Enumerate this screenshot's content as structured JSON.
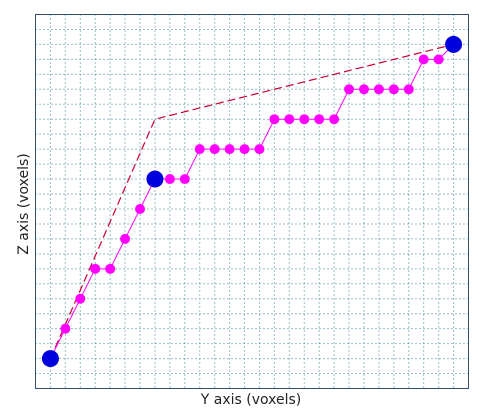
{
  "chart_data": {
    "type": "scatter",
    "title": "",
    "xlabel": "Y axis (voxels)",
    "ylabel": "Z axis (voxels)",
    "xlim": [
      0,
      29
    ],
    "ylim": [
      0,
      25
    ],
    "grid": true,
    "legend": "none",
    "colors": {
      "frame": "#2f4f6f",
      "grid": "#2e7f8f",
      "path": "#cc0033",
      "points": "#ff00ff",
      "nodes": "#0000dd"
    },
    "series": [
      {
        "role": "path-line",
        "style": "dashed",
        "x": [
          1,
          8,
          28
        ],
        "y": [
          2,
          18,
          23
        ]
      },
      {
        "role": "voxel-points",
        "x": [
          1,
          2,
          3,
          4,
          5,
          6,
          7,
          8,
          9,
          10,
          11,
          12,
          13,
          14,
          15,
          16,
          17,
          18,
          19,
          20,
          21,
          22,
          23,
          24,
          25,
          26,
          27,
          28
        ],
        "y": [
          2,
          4,
          6,
          8,
          8,
          10,
          12,
          14,
          14,
          14,
          16,
          16,
          16,
          16,
          16,
          18,
          18,
          18,
          18,
          18,
          20,
          20,
          20,
          20,
          20,
          22,
          22,
          23
        ]
      },
      {
        "role": "key-nodes",
        "x": [
          1,
          8,
          28
        ],
        "y": [
          2,
          14,
          23
        ]
      }
    ]
  }
}
